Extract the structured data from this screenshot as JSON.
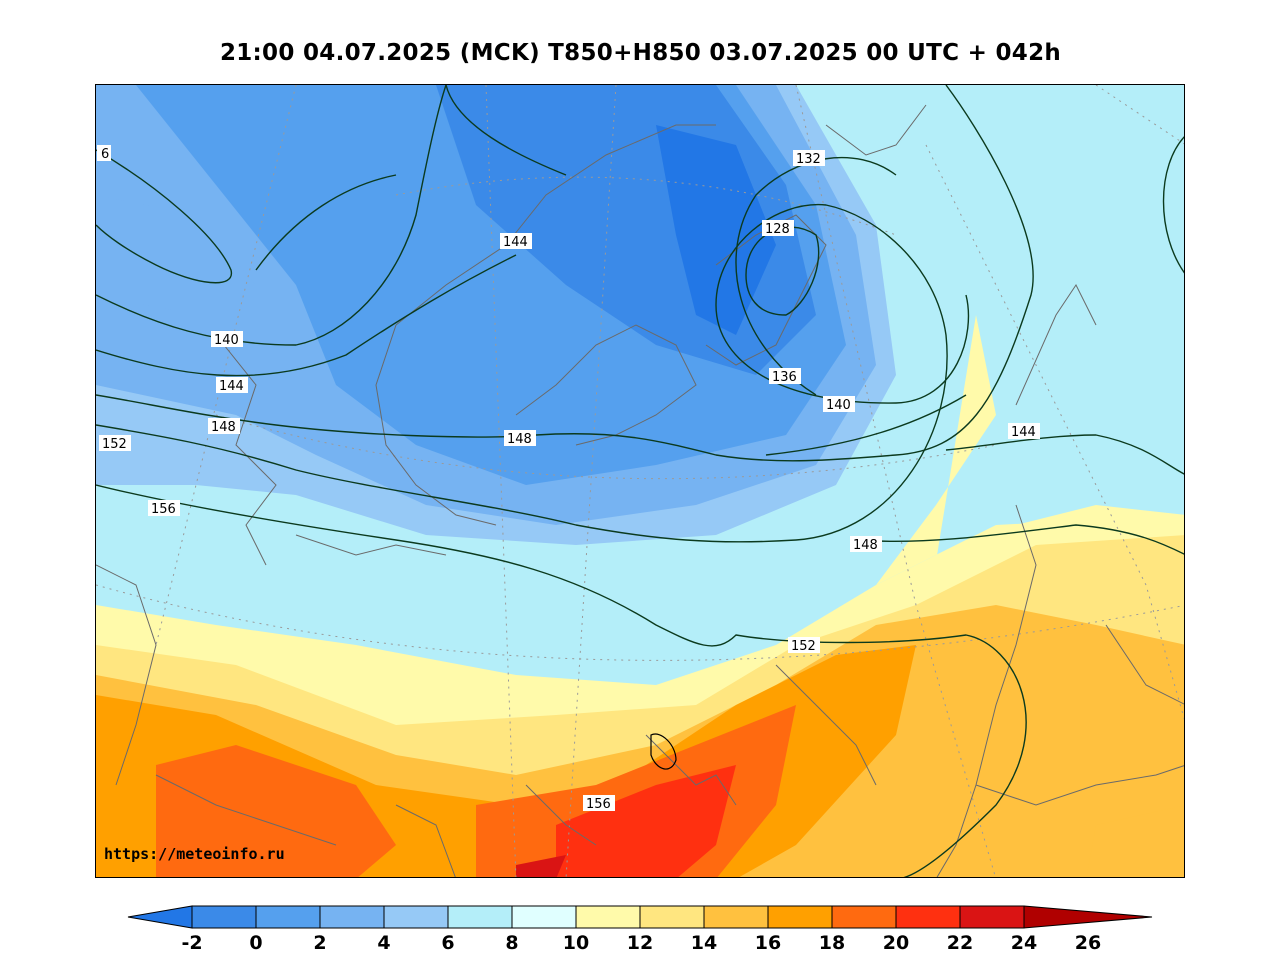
{
  "title": "21:00 04.07.2025 (MCK) T850+H850 03.07.2025 00 UTC + 042h",
  "watermark": "https://meteoinfo.ru",
  "contour_labels": [
    "6",
    "132",
    "128",
    "144",
    "140",
    "144",
    "148",
    "152",
    "136",
    "140",
    "148",
    "144",
    "156",
    "148",
    "152",
    "156"
  ],
  "colorbar": {
    "ticks": [
      "-2",
      "0",
      "2",
      "4",
      "6",
      "8",
      "10",
      "12",
      "14",
      "16",
      "18",
      "20",
      "22",
      "24",
      "26"
    ],
    "colors": [
      "#2277e6",
      "#3b8ae8",
      "#55a0ee",
      "#76b3f2",
      "#96c9f6",
      "#b4eef9",
      "#e0ffff",
      "#fffaaa",
      "#ffe680",
      "#ffc13f",
      "#ffa000",
      "#ff6a10",
      "#ff3010",
      "#da1414",
      "#b00000"
    ]
  }
}
